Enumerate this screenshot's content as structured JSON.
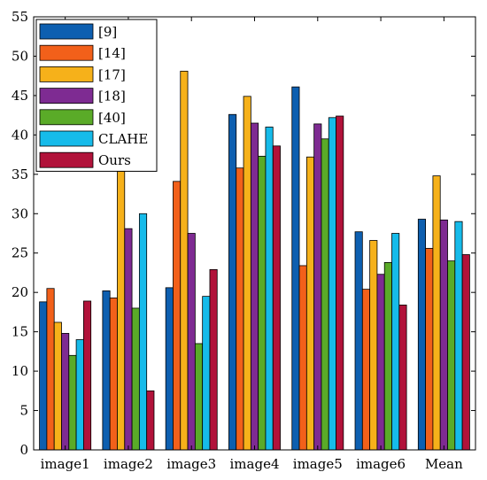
{
  "chart_data": {
    "type": "bar",
    "title": "",
    "xlabel": "",
    "ylabel": "",
    "ylim": [
      0,
      55
    ],
    "yticks": [
      0,
      5,
      10,
      15,
      20,
      25,
      30,
      35,
      40,
      45,
      50,
      55
    ],
    "grid": false,
    "legend_position": "top-left",
    "categories": [
      "image1",
      "image2",
      "image3",
      "image4",
      "image5",
      "image6",
      "Mean"
    ],
    "series": [
      {
        "name": "[9]",
        "color": "#0d5fb0",
        "values": [
          18.8,
          20.2,
          20.6,
          42.6,
          46.1,
          27.7,
          29.3
        ]
      },
      {
        "name": "[14]",
        "color": "#f2601a",
        "values": [
          20.5,
          19.3,
          34.1,
          35.8,
          23.4,
          20.4,
          25.6
        ]
      },
      {
        "name": "[17]",
        "color": "#f6b11a",
        "values": [
          16.2,
          35.4,
          48.1,
          44.9,
          37.2,
          26.6,
          34.8
        ]
      },
      {
        "name": "[18]",
        "color": "#7e2b92",
        "values": [
          14.8,
          28.1,
          27.5,
          41.5,
          41.4,
          22.3,
          29.2
        ]
      },
      {
        "name": "[40]",
        "color": "#5aab28",
        "values": [
          12.0,
          18.0,
          13.5,
          37.3,
          39.5,
          23.8,
          24.0
        ]
      },
      {
        "name": "CLAHE",
        "color": "#16bbea",
        "values": [
          14.0,
          30.0,
          19.5,
          41.0,
          42.2,
          27.5,
          29.0
        ]
      },
      {
        "name": "Ours",
        "color": "#b1123a",
        "values": [
          18.9,
          7.5,
          22.9,
          38.6,
          42.4,
          18.4,
          24.8
        ]
      }
    ]
  }
}
